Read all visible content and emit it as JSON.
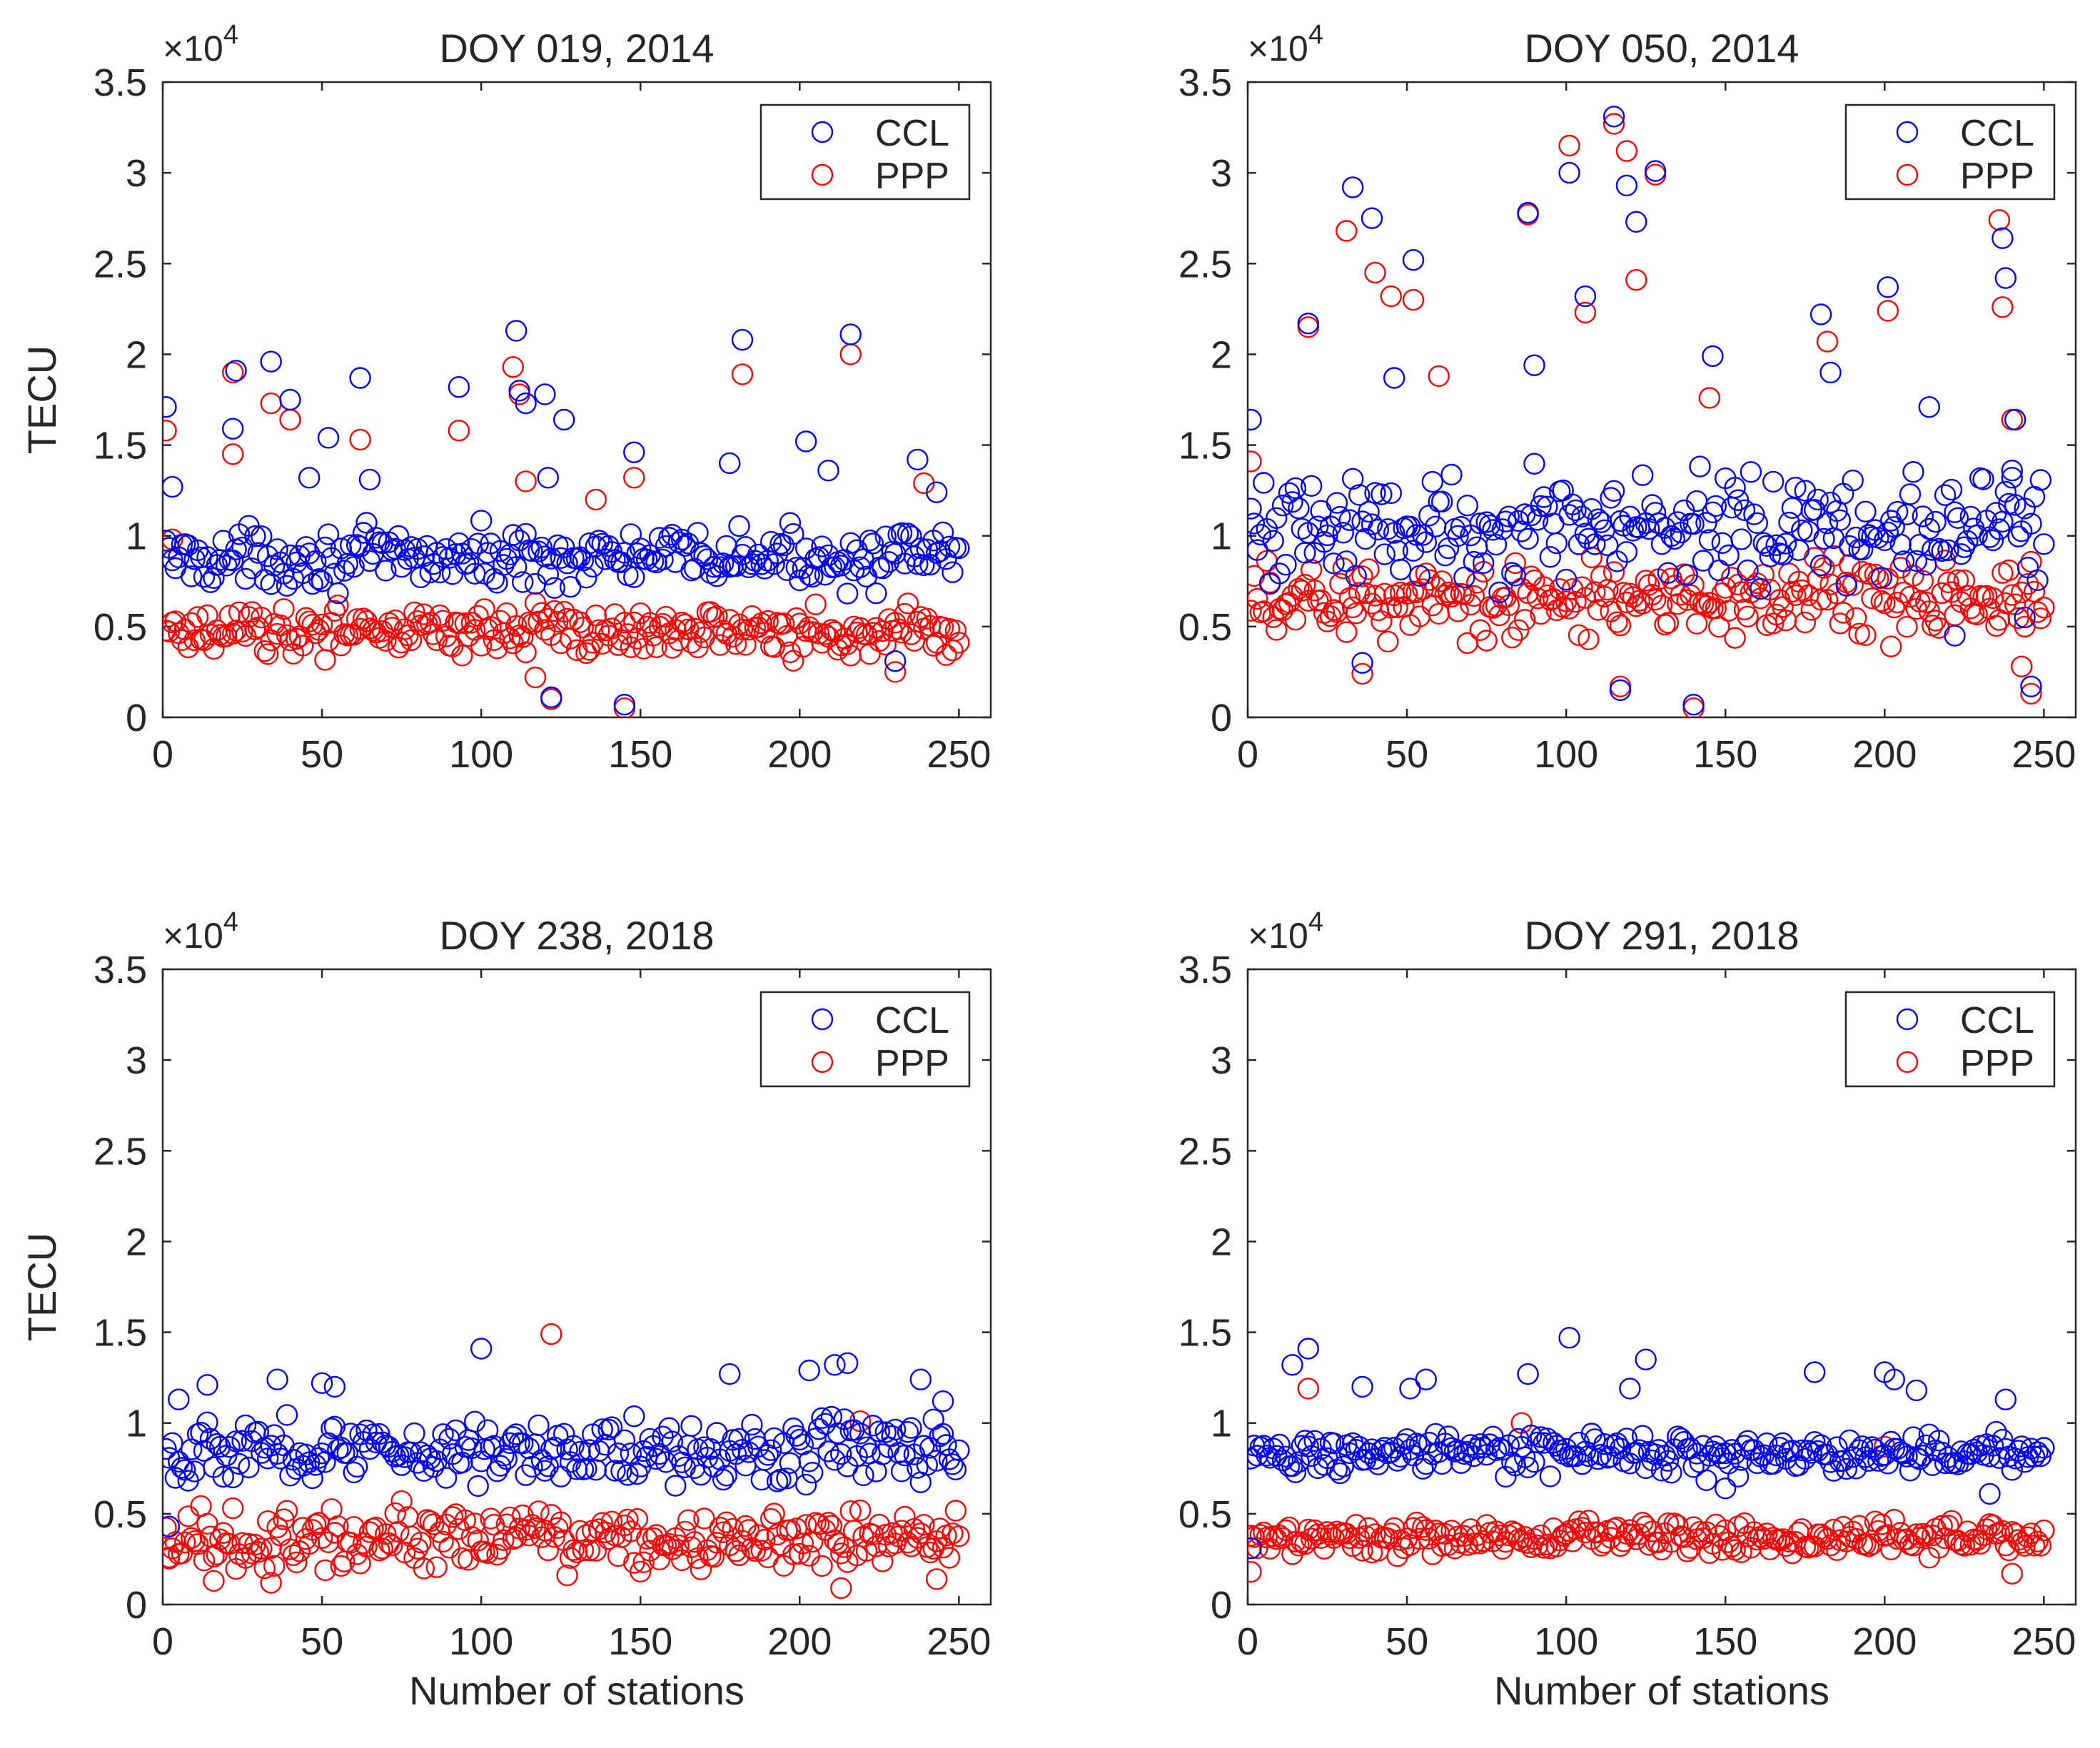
{
  "figure": {
    "xlabel": "Number of stations",
    "ylabel": "TECU",
    "exponent_base": "×10",
    "exponent_power": "4",
    "series_colors": {
      "CCL": "#0000ff",
      "PPP": "#ff0000"
    }
  },
  "chart_data": [
    {
      "type": "scatter",
      "title": "DOY 019, 2014",
      "xlabel": "",
      "ylabel": "TECU",
      "xlim": [
        0,
        260
      ],
      "ylim": [
        0,
        35000
      ],
      "xticks": [
        "0",
        "50",
        "100",
        "150",
        "200",
        "250"
      ],
      "yticks": [
        "0",
        "0.5",
        "1",
        "1.5",
        "2",
        "2.5",
        "3",
        "3.5"
      ],
      "y_multiplier": "×10^4",
      "legend": [
        "CCL",
        "PPP"
      ],
      "legend_position": "top-right",
      "series": [
        {
          "name": "CCL",
          "color": "#0000ff",
          "baseline": 8800,
          "spread": 1300,
          "outliers": [
            [
              1,
              17100
            ],
            [
              3,
              12700
            ],
            [
              23,
              19100
            ],
            [
              22,
              15900
            ],
            [
              34,
              19600
            ],
            [
              40,
              17500
            ],
            [
              46,
              13200
            ],
            [
              52,
              15400
            ],
            [
              62,
              18700
            ],
            [
              65,
              13100
            ],
            [
              93,
              18200
            ],
            [
              111,
              21300
            ],
            [
              112,
              18000
            ],
            [
              114,
              17300
            ],
            [
              120,
              17800
            ],
            [
              121,
              13200
            ],
            [
              122,
              1100
            ],
            [
              126,
              16400
            ],
            [
              145,
              700
            ],
            [
              148,
              14600
            ],
            [
              178,
              14000
            ],
            [
              182,
              20800
            ],
            [
              202,
              15200
            ],
            [
              209,
              13600
            ],
            [
              216,
              21100
            ],
            [
              237,
              14200
            ],
            [
              243,
              12400
            ],
            [
              230,
              3100
            ]
          ]
        },
        {
          "name": "PPP",
          "color": "#ff0000",
          "baseline": 4800,
          "spread": 1100,
          "outliers": [
            [
              1,
              15800
            ],
            [
              3,
              9800
            ],
            [
              22,
              19000
            ],
            [
              22,
              14500
            ],
            [
              34,
              17300
            ],
            [
              40,
              16400
            ],
            [
              62,
              15300
            ],
            [
              93,
              15800
            ],
            [
              110,
              19300
            ],
            [
              112,
              17800
            ],
            [
              114,
              13000
            ],
            [
              117,
              2200
            ],
            [
              122,
              1000
            ],
            [
              136,
              12000
            ],
            [
              145,
              500
            ],
            [
              148,
              13200
            ],
            [
              182,
              18900
            ],
            [
              216,
              20000
            ],
            [
              239,
              12900
            ],
            [
              230,
              2500
            ]
          ]
        }
      ]
    },
    {
      "type": "scatter",
      "title": "DOY 050, 2014",
      "xlabel": "",
      "ylabel": "",
      "xlim": [
        0,
        260
      ],
      "ylim": [
        0,
        35000
      ],
      "xticks": [
        "0",
        "50",
        "100",
        "150",
        "200",
        "250"
      ],
      "yticks": [
        "0",
        "0.5",
        "1",
        "1.5",
        "2",
        "2.5",
        "3",
        "3.5"
      ],
      "y_multiplier": "×10^4",
      "legend": [
        "CCL",
        "PPP"
      ],
      "legend_position": "top-right",
      "series": [
        {
          "name": "CCL",
          "color": "#0000ff",
          "baseline": 10500,
          "spread": 2600,
          "outliers": [
            [
              1,
              16400
            ],
            [
              19,
              21700
            ],
            [
              33,
              29200
            ],
            [
              36,
              3000
            ],
            [
              39,
              27500
            ],
            [
              46,
              18700
            ],
            [
              52,
              25200
            ],
            [
              88,
              27800
            ],
            [
              90,
              19400
            ],
            [
              101,
              30000
            ],
            [
              106,
              23200
            ],
            [
              115,
              33100
            ],
            [
              117,
              1500
            ],
            [
              119,
              29300
            ],
            [
              122,
              27300
            ],
            [
              128,
              30100
            ],
            [
              140,
              700
            ],
            [
              146,
              19900
            ],
            [
              180,
              22200
            ],
            [
              183,
              19000
            ],
            [
              201,
              23700
            ],
            [
              214,
              17100
            ],
            [
              222,
              4500
            ],
            [
              237,
              26400
            ],
            [
              238,
              24200
            ],
            [
              240,
              13600
            ],
            [
              241,
              16400
            ],
            [
              244,
              5500
            ],
            [
              246,
              1700
            ]
          ]
        },
        {
          "name": "PPP",
          "color": "#ff0000",
          "baseline": 6500,
          "spread": 1800,
          "outliers": [
            [
              1,
              14100
            ],
            [
              19,
              21500
            ],
            [
              31,
              26800
            ],
            [
              36,
              2400
            ],
            [
              40,
              24500
            ],
            [
              45,
              23200
            ],
            [
              52,
              23000
            ],
            [
              60,
              18800
            ],
            [
              88,
              27700
            ],
            [
              101,
              31500
            ],
            [
              106,
              22300
            ],
            [
              115,
              32700
            ],
            [
              117,
              1700
            ],
            [
              119,
              31200
            ],
            [
              122,
              24100
            ],
            [
              128,
              29900
            ],
            [
              140,
              500
            ],
            [
              145,
              17600
            ],
            [
              182,
              20700
            ],
            [
              201,
              22400
            ],
            [
              236,
              27400
            ],
            [
              237,
              22600
            ],
            [
              240,
              16400
            ],
            [
              243,
              2800
            ],
            [
              246,
              1300
            ]
          ]
        }
      ]
    },
    {
      "type": "scatter",
      "title": "DOY 238, 2018",
      "xlabel": "Number of stations",
      "ylabel": "TECU",
      "xlim": [
        0,
        260
      ],
      "ylim": [
        0,
        35000
      ],
      "xticks": [
        "0",
        "50",
        "100",
        "150",
        "200",
        "250"
      ],
      "yticks": [
        "0",
        "0.5",
        "1",
        "1.5",
        "2",
        "2.5",
        "3",
        "3.5"
      ],
      "y_multiplier": "×10^4",
      "legend": [
        "CCL",
        "PPP"
      ],
      "legend_position": "top-right",
      "series": [
        {
          "name": "CCL",
          "color": "#0000ff",
          "baseline": 8500,
          "spread": 1500,
          "outliers": [
            [
              2,
              4300
            ],
            [
              5,
              11300
            ],
            [
              14,
              12100
            ],
            [
              36,
              12400
            ],
            [
              50,
              12200
            ],
            [
              54,
              12000
            ],
            [
              100,
              14100
            ],
            [
              178,
              12700
            ],
            [
              203,
              12900
            ],
            [
              211,
              13200
            ],
            [
              215,
              13300
            ],
            [
              238,
              12400
            ],
            [
              245,
              11200
            ]
          ]
        },
        {
          "name": "PPP",
          "color": "#ff0000",
          "baseline": 3600,
          "spread": 1400,
          "outliers": [
            [
              2,
              2600
            ],
            [
              16,
              1300
            ],
            [
              34,
              1200
            ],
            [
              122,
              14900
            ],
            [
              213,
              900
            ],
            [
              219,
              10100
            ],
            [
              243,
              1400
            ]
          ]
        }
      ]
    },
    {
      "type": "scatter",
      "title": "DOY 291, 2018",
      "xlabel": "Number of stations",
      "ylabel": "",
      "xlim": [
        0,
        260
      ],
      "ylim": [
        0,
        35000
      ],
      "xticks": [
        "0",
        "50",
        "100",
        "150",
        "200",
        "250"
      ],
      "yticks": [
        "0",
        "0.5",
        "1",
        "1.5",
        "2",
        "2.5",
        "3",
        "3.5"
      ],
      "y_multiplier": "×10^4",
      "legend": [
        "CCL",
        "PPP"
      ],
      "legend_position": "top-right",
      "series": [
        {
          "name": "CCL",
          "color": "#0000ff",
          "baseline": 8300,
          "spread": 900,
          "outliers": [
            [
              1,
              3100
            ],
            [
              14,
              13200
            ],
            [
              19,
              14100
            ],
            [
              36,
              12000
            ],
            [
              51,
              11900
            ],
            [
              56,
              12400
            ],
            [
              88,
              12700
            ],
            [
              101,
              14700
            ],
            [
              120,
              11900
            ],
            [
              125,
              13500
            ],
            [
              150,
              6400
            ],
            [
              178,
              12800
            ],
            [
              200,
              12800
            ],
            [
              203,
              12400
            ],
            [
              210,
              11800
            ],
            [
              233,
              6100
            ],
            [
              238,
              11300
            ]
          ]
        },
        {
          "name": "PPP",
          "color": "#ff0000",
          "baseline": 3700,
          "spread": 800,
          "outliers": [
            [
              1,
              1800
            ],
            [
              19,
              11900
            ],
            [
              86,
              10000
            ],
            [
              200,
              8700
            ],
            [
              240,
              1700
            ]
          ]
        }
      ]
    }
  ]
}
